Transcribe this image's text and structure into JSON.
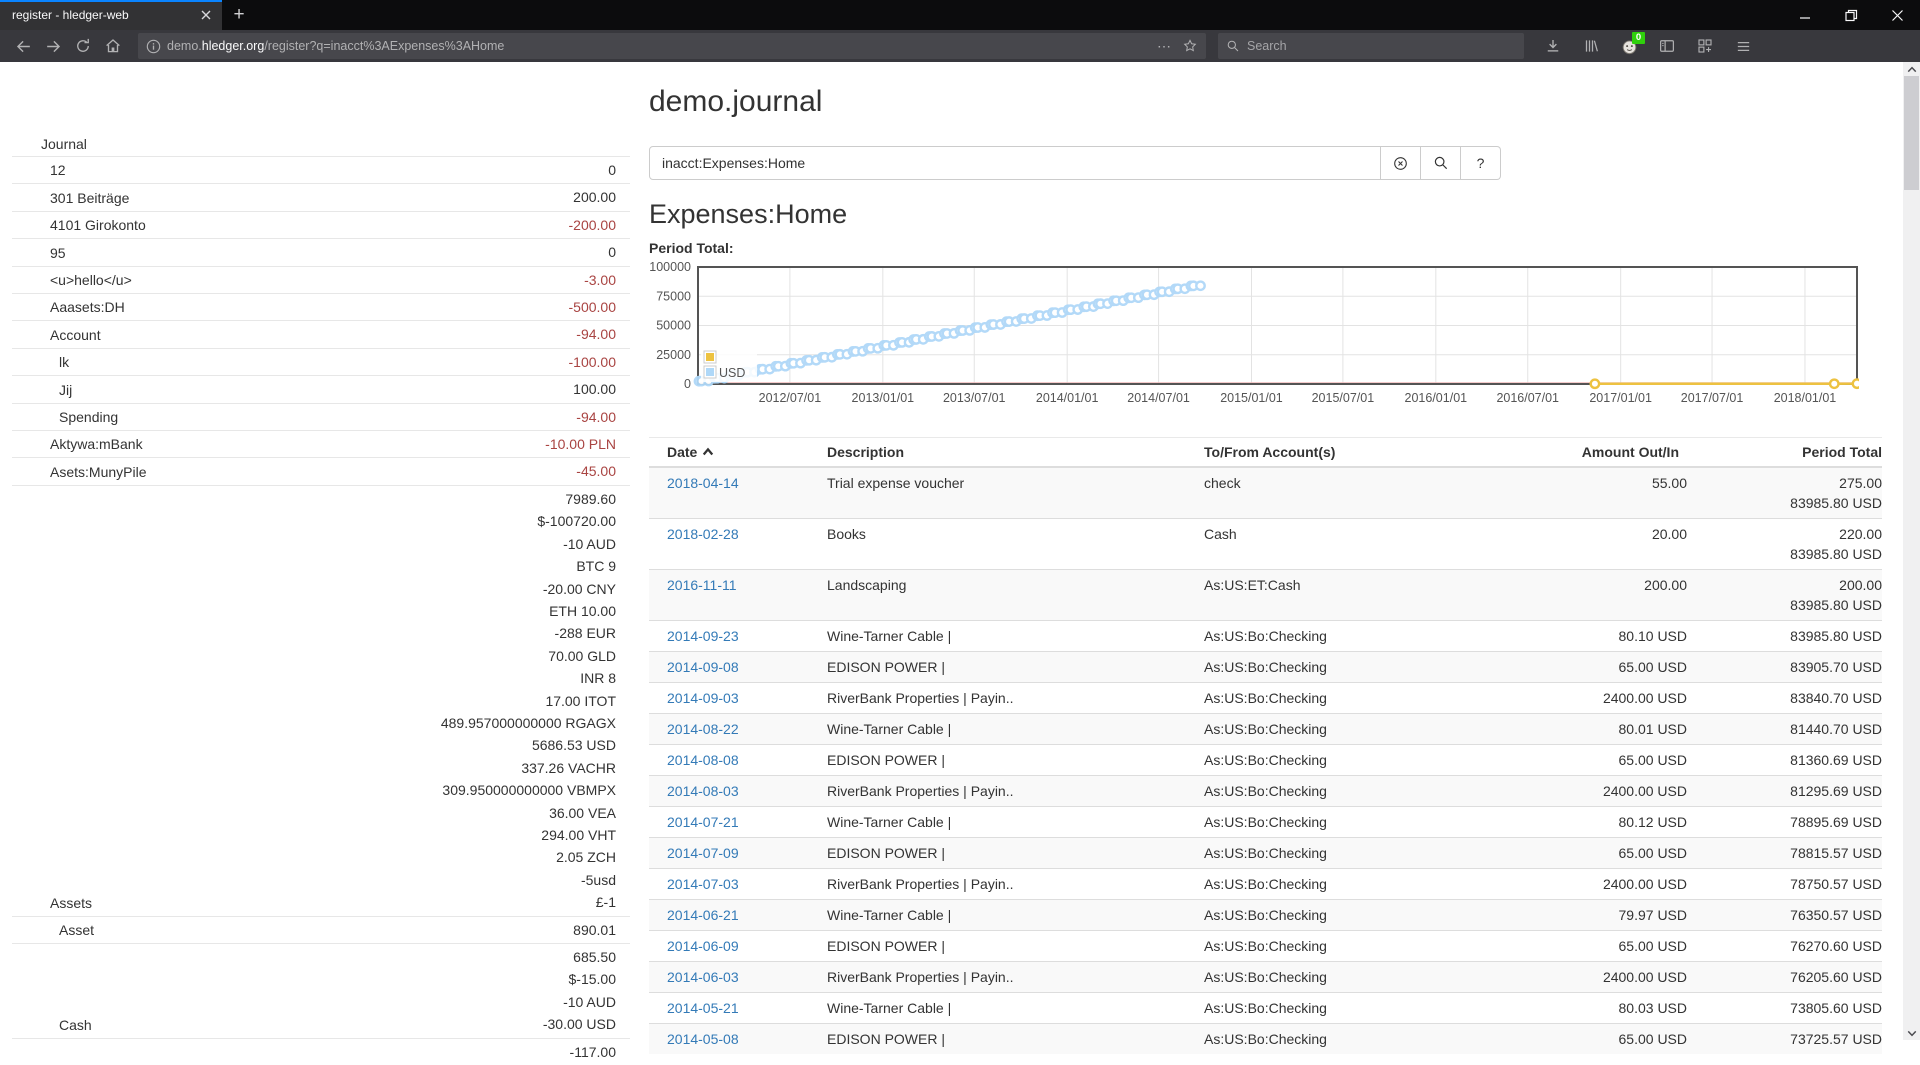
{
  "browser": {
    "tab_title": "register - hledger-web",
    "glyphs": {
      "new_tab": "+",
      "page_actions": "⋯"
    },
    "url": {
      "subdomain": "demo.",
      "domain": "hledger.org",
      "path": "/register?q=inacct%3AExpenses%3AHome"
    },
    "search_placeholder": "Search",
    "extension_badge": "0"
  },
  "page": {
    "title": "demo.journal",
    "query_value": "inacct:Expenses:Home",
    "help_button": "?",
    "heading": "Expenses:Home",
    "chart_label": "Period Total:"
  },
  "sidebar": {
    "title": "Journal",
    "accounts": [
      {
        "name": "12",
        "depth": 1,
        "amounts": [
          {
            "t": "0",
            "n": false
          }
        ]
      },
      {
        "name": "301 Beiträge",
        "depth": 1,
        "amounts": [
          {
            "t": "200.00",
            "n": false
          }
        ]
      },
      {
        "name": "4101 Girokonto",
        "depth": 1,
        "amounts": [
          {
            "t": "-200.00",
            "n": true
          }
        ]
      },
      {
        "name": "95",
        "depth": 1,
        "amounts": [
          {
            "t": "0",
            "n": false
          }
        ]
      },
      {
        "name": "<u>hello</u>",
        "depth": 1,
        "amounts": [
          {
            "t": "-3.00",
            "n": true
          }
        ]
      },
      {
        "name": "Aaasets:DH",
        "depth": 1,
        "amounts": [
          {
            "t": "-500.00",
            "n": true
          }
        ]
      },
      {
        "name": "Account",
        "depth": 1,
        "amounts": [
          {
            "t": "-94.00",
            "n": true
          }
        ]
      },
      {
        "name": "lk",
        "depth": 2,
        "amounts": [
          {
            "t": "-100.00",
            "n": true
          }
        ]
      },
      {
        "name": "Jij",
        "depth": 2,
        "amounts": [
          {
            "t": "100.00",
            "n": false
          }
        ]
      },
      {
        "name": "Spending",
        "depth": 2,
        "amounts": [
          {
            "t": "-94.00",
            "n": true
          }
        ]
      },
      {
        "name": "Aktywa:mBank",
        "depth": 1,
        "amounts": [
          {
            "t": "-10.00 PLN",
            "n": true
          }
        ]
      },
      {
        "name": "Asets:MunyPile",
        "depth": 1,
        "amounts": [
          {
            "t": "-45.00",
            "n": true
          }
        ]
      },
      {
        "name": "Assets",
        "depth": 1,
        "amounts": [
          {
            "t": "7989.60",
            "n": false
          },
          {
            "t": "$-100720.00",
            "n": false
          },
          {
            "t": "-10 AUD",
            "n": false
          },
          {
            "t": "BTC 9",
            "n": false
          },
          {
            "t": "-20.00 CNY",
            "n": false
          },
          {
            "t": "ETH 10.00",
            "n": false
          },
          {
            "t": "-288 EUR",
            "n": false
          },
          {
            "t": "70.00 GLD",
            "n": false
          },
          {
            "t": "INR 8",
            "n": false
          },
          {
            "t": "17.00 ITOT",
            "n": false
          },
          {
            "t": "489.957000000000 RGAGX",
            "n": false
          },
          {
            "t": "5686.53 USD",
            "n": false
          },
          {
            "t": "337.26 VACHR",
            "n": false
          },
          {
            "t": "309.950000000000 VBMPX",
            "n": false
          },
          {
            "t": "36.00 VEA",
            "n": false
          },
          {
            "t": "294.00 VHT",
            "n": false
          },
          {
            "t": "2.05 ZCH",
            "n": false
          },
          {
            "t": "-5usd",
            "n": false
          },
          {
            "t": "£-1",
            "n": false
          }
        ]
      },
      {
        "name": "Asset",
        "depth": 2,
        "amounts": [
          {
            "t": "890.01",
            "n": false
          }
        ]
      },
      {
        "name": "Cash",
        "depth": 2,
        "amounts": [
          {
            "t": "685.50",
            "n": false
          },
          {
            "t": "$-15.00",
            "n": false
          },
          {
            "t": "-10 AUD",
            "n": false
          },
          {
            "t": "-30.00 USD",
            "n": false
          }
        ]
      },
      {
        "name": "",
        "depth": 2,
        "amounts": [
          {
            "t": "-117.00",
            "n": false
          }
        ]
      }
    ]
  },
  "register_table": {
    "columns": [
      "Date",
      "Description",
      "To/From Account(s)",
      "Amount Out/In",
      "Period Total"
    ],
    "rows": [
      {
        "date": "2018-04-14",
        "description": "Trial expense voucher",
        "accounts": "check",
        "amount": "55.00",
        "period": [
          "275.00",
          "83985.80 USD"
        ]
      },
      {
        "date": "2018-02-28",
        "description": "Books",
        "accounts": "Cash",
        "amount": "20.00",
        "period": [
          "220.00",
          "83985.80 USD"
        ]
      },
      {
        "date": "2016-11-11",
        "description": "Landscaping",
        "accounts": "As:US:ET:Cash",
        "amount": "200.00",
        "period": [
          "200.00",
          "83985.80 USD"
        ]
      },
      {
        "date": "2014-09-23",
        "description": "Wine-Tarner Cable |",
        "accounts": "As:US:Bo:Checking",
        "amount": "80.10 USD",
        "period": [
          "83985.80 USD"
        ]
      },
      {
        "date": "2014-09-08",
        "description": "EDISON POWER |",
        "accounts": "As:US:Bo:Checking",
        "amount": "65.00 USD",
        "period": [
          "83905.70 USD"
        ]
      },
      {
        "date": "2014-09-03",
        "description": "RiverBank Properties | Payin..",
        "accounts": "As:US:Bo:Checking",
        "amount": "2400.00 USD",
        "period": [
          "83840.70 USD"
        ]
      },
      {
        "date": "2014-08-22",
        "description": "Wine-Tarner Cable |",
        "accounts": "As:US:Bo:Checking",
        "amount": "80.01 USD",
        "period": [
          "81440.70 USD"
        ]
      },
      {
        "date": "2014-08-08",
        "description": "EDISON POWER |",
        "accounts": "As:US:Bo:Checking",
        "amount": "65.00 USD",
        "period": [
          "81360.69 USD"
        ]
      },
      {
        "date": "2014-08-03",
        "description": "RiverBank Properties | Payin..",
        "accounts": "As:US:Bo:Checking",
        "amount": "2400.00 USD",
        "period": [
          "81295.69 USD"
        ]
      },
      {
        "date": "2014-07-21",
        "description": "Wine-Tarner Cable |",
        "accounts": "As:US:Bo:Checking",
        "amount": "80.12 USD",
        "period": [
          "78895.69 USD"
        ]
      },
      {
        "date": "2014-07-09",
        "description": "EDISON POWER |",
        "accounts": "As:US:Bo:Checking",
        "amount": "65.00 USD",
        "period": [
          "78815.57 USD"
        ]
      },
      {
        "date": "2014-07-03",
        "description": "RiverBank Properties | Payin..",
        "accounts": "As:US:Bo:Checking",
        "amount": "2400.00 USD",
        "period": [
          "78750.57 USD"
        ]
      },
      {
        "date": "2014-06-21",
        "description": "Wine-Tarner Cable |",
        "accounts": "As:US:Bo:Checking",
        "amount": "79.97 USD",
        "period": [
          "76350.57 USD"
        ]
      },
      {
        "date": "2014-06-09",
        "description": "EDISON POWER |",
        "accounts": "As:US:Bo:Checking",
        "amount": "65.00 USD",
        "period": [
          "76270.60 USD"
        ]
      },
      {
        "date": "2014-06-03",
        "description": "RiverBank Properties | Payin..",
        "accounts": "As:US:Bo:Checking",
        "amount": "2400.00 USD",
        "period": [
          "76205.60 USD"
        ]
      },
      {
        "date": "2014-05-21",
        "description": "Wine-Tarner Cable |",
        "accounts": "As:US:Bo:Checking",
        "amount": "80.03 USD",
        "period": [
          "73805.60 USD"
        ]
      },
      {
        "date": "2014-05-08",
        "description": "EDISON POWER |",
        "accounts": "As:US:Bo:Checking",
        "amount": "65.00 USD",
        "period": [
          "73725.57 USD"
        ]
      }
    ]
  },
  "chart_data": {
    "type": "line",
    "title": "Period Total:",
    "x_range": [
      "2012-01-01",
      "2018-04-14"
    ],
    "y_max": 100000,
    "y_ticks": [
      0,
      25000,
      50000,
      75000,
      100000
    ],
    "x_ticks": [
      "2012/07/01",
      "2013/01/01",
      "2013/07/01",
      "2014/01/01",
      "2014/07/01",
      "2015/01/01",
      "2015/07/01",
      "2016/01/01",
      "2016/07/01",
      "2017/01/01",
      "2017/07/01",
      "2018/01/01"
    ],
    "grid": true,
    "legend_position": "bottom-left",
    "legend": [
      {
        "label": "",
        "color": "#edc240"
      },
      {
        "label": "USD",
        "color": "#afd8f8"
      }
    ],
    "zero_line_color": "#f2b8b8",
    "series": [
      {
        "name": "",
        "color": "#edc240",
        "points": [
          [
            "2016-11-11",
            200.0
          ],
          [
            "2018-02-28",
            220.0
          ],
          [
            "2018-04-14",
            275.0
          ]
        ]
      },
      {
        "name": "USD",
        "color": "#afd8f8",
        "cumulative": {
          "start_month": "2012-01",
          "day_offsets": [
            3,
            8,
            22
          ],
          "triples": [
            [
              2400,
              2465,
              2545
            ],
            [
              4945,
              5010,
              5090
            ],
            [
              7490,
              7555,
              7635
            ],
            [
              10035,
              10100,
              10180
            ],
            [
              12580,
              12645,
              12725
            ],
            [
              15125,
              15190,
              15270
            ],
            [
              17670,
              17735,
              17815
            ],
            [
              20215,
              20280,
              20360
            ],
            [
              22760,
              22825,
              22905
            ],
            [
              25305,
              25370,
              25450
            ],
            [
              27850,
              27915,
              27995
            ],
            [
              30395,
              30460,
              30540
            ],
            [
              32940,
              33005,
              33085
            ],
            [
              35485,
              35550,
              35630
            ],
            [
              38030,
              38095,
              38175
            ],
            [
              40575,
              40640,
              40720
            ],
            [
              43120,
              43185,
              43265
            ],
            [
              45665,
              45730,
              45810
            ],
            [
              48210,
              48275,
              48355
            ],
            [
              50755,
              50820,
              50900
            ],
            [
              53300,
              53365,
              53445
            ],
            [
              55845,
              55910,
              55990
            ],
            [
              58390,
              58455,
              58535
            ],
            [
              60935,
              61000,
              61080
            ],
            [
              63480,
              63545,
              63625
            ],
            [
              66025,
              66090,
              66170
            ],
            [
              68570,
              68635,
              68715
            ],
            [
              71115,
              71180,
              71260
            ],
            [
              73660,
              73725.57,
              73805.6
            ],
            [
              76205.6,
              76270.6,
              76350.57
            ],
            [
              78750.57,
              78815.57,
              78895.69
            ],
            [
              81295.69,
              81360.69,
              81440.7
            ],
            [
              83840.7,
              83905.7,
              83985.8
            ]
          ]
        }
      }
    ]
  }
}
